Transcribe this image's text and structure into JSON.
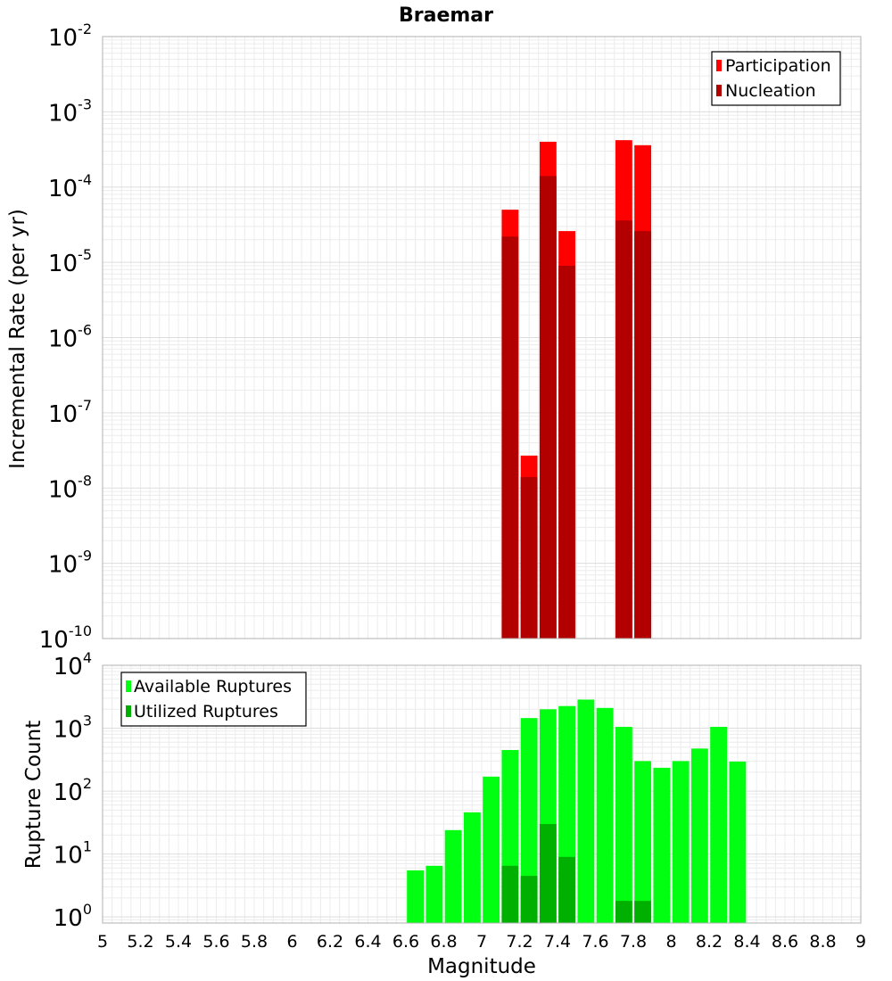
{
  "chart_data": [
    {
      "type": "bar",
      "title": "Braemar",
      "ylabel": "Incremental Rate (per yr)",
      "yscale": "log",
      "ylim": [
        1e-10,
        0.01
      ],
      "xlim": [
        5,
        9
      ],
      "ytick_base": "10",
      "ytick_exponents": [
        "-10",
        "-9",
        "-8",
        "-7",
        "-6",
        "-5",
        "-4",
        "-3",
        "-2"
      ],
      "legend_position": "top-right",
      "bin_width": 0.1,
      "x": [
        7.15,
        7.25,
        7.35,
        7.45,
        7.75,
        7.85
      ],
      "series": [
        {
          "name": "Participation",
          "color": "#ff0000",
          "values": [
            5e-05,
            2.7e-08,
            0.0004,
            2.6e-05,
            0.00042,
            0.00036
          ]
        },
        {
          "name": "Nucleation",
          "color": "#b20000",
          "values": [
            2.2e-05,
            1.4e-08,
            0.00014,
            9e-06,
            3.6e-05,
            2.6e-05
          ]
        }
      ]
    },
    {
      "type": "bar",
      "xlabel": "Magnitude",
      "ylabel": "Rupture Count",
      "yscale": "log",
      "ylim": [
        0.8,
        10000
      ],
      "xlim": [
        5,
        9
      ],
      "ytick_base": "10",
      "ytick_exponents": [
        "0",
        "1",
        "2",
        "3",
        "4"
      ],
      "xticks": [
        "5",
        "5.2",
        "5.4",
        "5.6",
        "5.8",
        "6",
        "6.2",
        "6.4",
        "6.6",
        "6.8",
        "7",
        "7.2",
        "7.4",
        "7.6",
        "7.8",
        "8",
        "8.2",
        "8.4",
        "8.6",
        "8.8",
        "9"
      ],
      "legend_position": "top-left",
      "bin_width": 0.1,
      "series": [
        {
          "name": "Available Ruptures",
          "color": "#00ff10",
          "x": [
            6.65,
            6.75,
            6.85,
            6.95,
            7.05,
            7.15,
            7.25,
            7.35,
            7.45,
            7.55,
            7.65,
            7.75,
            7.85,
            7.95,
            8.05,
            8.15,
            8.25,
            8.35
          ],
          "values": [
            5.5,
            6.5,
            24,
            46,
            170,
            450,
            1450,
            2000,
            2250,
            2850,
            2100,
            1050,
            300,
            235,
            300,
            475,
            1050,
            295
          ]
        },
        {
          "name": "Utilized Ruptures",
          "color": "#00b000",
          "x": [
            7.15,
            7.25,
            7.35,
            7.45,
            7.75,
            7.85
          ],
          "values": [
            6.5,
            4.5,
            30,
            9,
            1.8,
            1.8
          ]
        }
      ]
    }
  ]
}
